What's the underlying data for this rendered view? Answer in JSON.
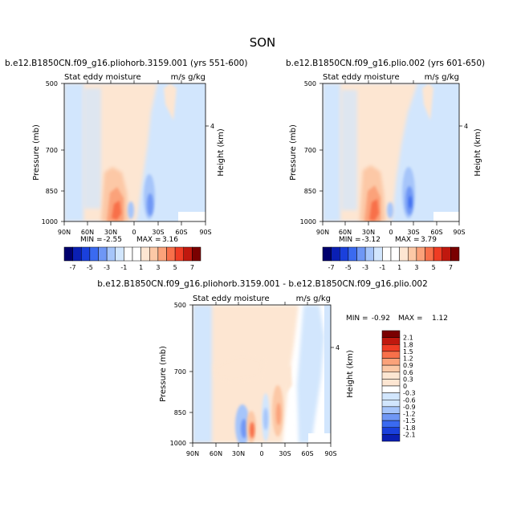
{
  "figure": {
    "title": "SON"
  },
  "colors": {
    "cold": [
      "#00006e",
      "#0a1fb3",
      "#1a40dc",
      "#3a6af0",
      "#6f97f5",
      "#a6c5fa",
      "#d2e6fd"
    ],
    "neutral": "#ffffff",
    "warm": [
      "#fde6d2",
      "#fcc8a6",
      "#fba27a",
      "#f8704a",
      "#ef3c24",
      "#c0180e",
      "#7a0000"
    ]
  },
  "chart_data": [
    {
      "type": "heatmap",
      "id": "panel-a",
      "title": "b.e12.B1850CN.f09_g16.pliohorb.3159.001 (yrs 551-600)",
      "variable_label": "Stat eddy moisture",
      "units_label": "m/s g/kg",
      "ylabel": "Pressure (mb)",
      "y2label": "Height (km)",
      "x_ticks": [
        "90N",
        "60N",
        "30N",
        "0",
        "30S",
        "60S",
        "90S"
      ],
      "y_ticks": [
        "500",
        "700",
        "850",
        "1000"
      ],
      "y2_ticks": [
        "4"
      ],
      "min_label": "MIN =",
      "min_value": "-2.55",
      "max_label": "MAX =",
      "max_value": "3.16",
      "colorbar_labels": [
        "-7",
        "-5",
        "-3",
        "-1",
        "1",
        "3",
        "5",
        "7"
      ]
    },
    {
      "type": "heatmap",
      "id": "panel-b",
      "title": "b.e12.B1850CN.f09_g16.plio.002 (yrs 601-650)",
      "variable_label": "Stat eddy moisture",
      "units_label": "m/s g/kg",
      "ylabel": "Pressure (mb)",
      "y2label": "Height (km)",
      "x_ticks": [
        "90N",
        "60N",
        "30N",
        "0",
        "30S",
        "60S",
        "90S"
      ],
      "y_ticks": [
        "500",
        "700",
        "850",
        "1000"
      ],
      "y2_ticks": [
        "4"
      ],
      "min_label": "MIN =",
      "min_value": "-3.12",
      "max_label": "MAX =",
      "max_value": "3.79",
      "colorbar_labels": [
        "-7",
        "-5",
        "-3",
        "-1",
        "1",
        "3",
        "5",
        "7"
      ]
    },
    {
      "type": "heatmap",
      "id": "panel-diff",
      "title": "b.e12.B1850CN.f09_g16.pliohorb.3159.001 - b.e12.B1850CN.f09_g16.plio.002",
      "variable_label": "Stat eddy moisture",
      "units_label": "m/s g/kg",
      "ylabel": "Pressure (mb)",
      "y2label": "Height (km)",
      "x_ticks": [
        "90N",
        "60N",
        "30N",
        "0",
        "30S",
        "60S",
        "90S"
      ],
      "y_ticks": [
        "500",
        "700",
        "850",
        "1000"
      ],
      "y2_ticks": [
        "4"
      ],
      "min_label": "MIN =",
      "min_value": "-0.92",
      "max_label": "MAX =",
      "max_value": "1.12",
      "colorbar_labels": [
        "2.1",
        "1.8",
        "1.5",
        "1.2",
        "0.9",
        "0.6",
        "0.3",
        "0",
        "-0.3",
        "-0.6",
        "-0.9",
        "-1.2",
        "-1.5",
        "-1.8",
        "-2.1"
      ]
    }
  ]
}
